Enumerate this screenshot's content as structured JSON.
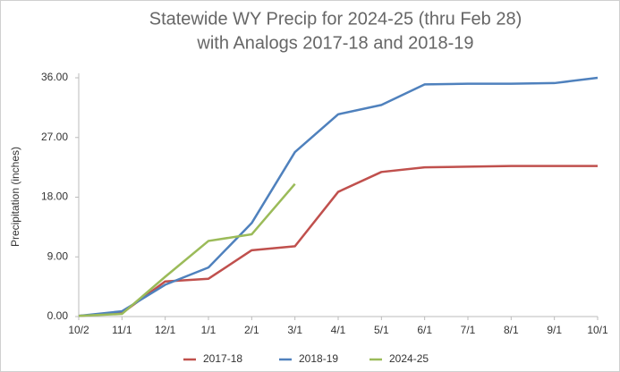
{
  "chart_data": {
    "type": "line",
    "title": [
      "Statewide WY Precip for 2024-25 (thru Feb 28)",
      "with Analogs 2017-18 and 2018-19"
    ],
    "y_label": "Precipitation (inches)",
    "categories": [
      "10/2",
      "11/1",
      "12/1",
      "1/1",
      "2/1",
      "3/1",
      "4/1",
      "5/1",
      "6/1",
      "7/1",
      "8/1",
      "9/1",
      "10/1"
    ],
    "series": [
      {
        "name": "2017-18",
        "color": "#c0504d",
        "values": [
          0.1,
          0.5,
          5.3,
          5.7,
          10.0,
          10.6,
          18.8,
          21.8,
          22.5,
          22.6,
          22.7,
          22.7,
          22.7
        ]
      },
      {
        "name": "2018-19",
        "color": "#4f81bd",
        "values": [
          0.1,
          0.8,
          4.8,
          7.4,
          14.1,
          24.8,
          30.5,
          31.9,
          35.0,
          35.1,
          35.1,
          35.2,
          36.0
        ]
      },
      {
        "name": "2024-25",
        "color": "#9bbb59",
        "values": [
          0.1,
          0.4,
          6.0,
          11.4,
          12.4,
          20.0,
          null,
          null,
          null,
          null,
          null,
          null,
          null
        ]
      }
    ],
    "ylim": [
      0,
      36
    ],
    "yticks": [
      {
        "value": 0,
        "label": "0.00"
      },
      {
        "value": 9,
        "label": "9.00"
      },
      {
        "value": 18,
        "label": "18.00"
      },
      {
        "value": 27,
        "label": "27.00"
      },
      {
        "value": 36,
        "label": "36.00"
      }
    ],
    "grid": false,
    "legend": "bottom"
  }
}
